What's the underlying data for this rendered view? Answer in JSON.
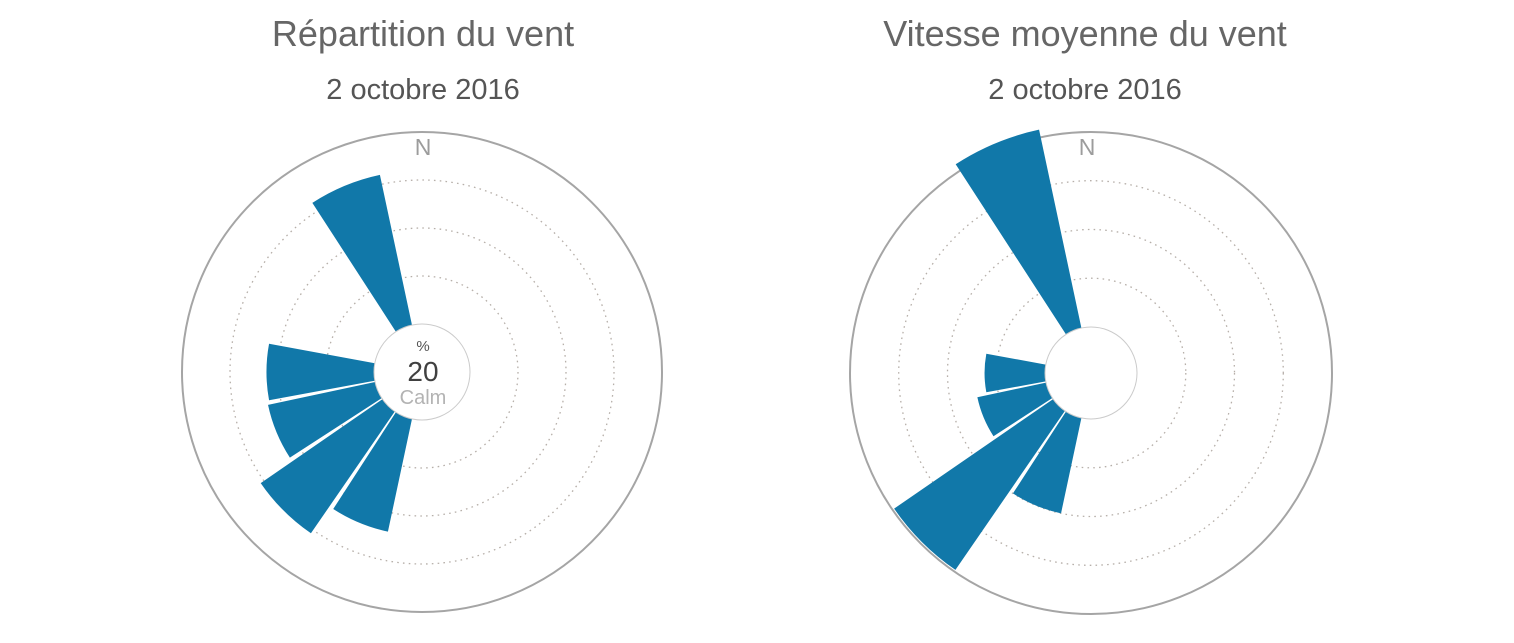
{
  "colors": {
    "petal": "#1178A9",
    "outer_circle": "#a5a5a5",
    "grid_dotted": "#b6afa9",
    "hole_border": "#cbcbcb",
    "title": "#666666",
    "subtitle": "#555555",
    "north_label": "#9c9c9c"
  },
  "chart_data": [
    {
      "type": "wind_rose",
      "title": "Répartition du vent",
      "subtitle": "2 octobre 2016",
      "north_label": "N",
      "center_label": {
        "unit": "%",
        "value": "20",
        "label": "Calm"
      },
      "axis": {
        "ring_fractions": [
          0.25,
          0.5,
          0.75
        ],
        "outer_fraction": 1,
        "tick_labels_visible": false,
        "grid_style": "dotted"
      },
      "sector_width_deg": 22.5,
      "sector_pad_deg": 0.8,
      "legend_position": "none",
      "petals": [
        {
          "direction": "NNW",
          "angle_deg": 337.5,
          "value_fraction": 0.8
        },
        {
          "direction": "W",
          "angle_deg": 270.0,
          "value_fraction": 0.56
        },
        {
          "direction": "WSW",
          "angle_deg": 247.5,
          "value_fraction": 0.57
        },
        {
          "direction": "SW",
          "angle_deg": 225.0,
          "value_fraction": 0.77
        },
        {
          "direction": "SSW",
          "angle_deg": 202.5,
          "value_fraction": 0.6
        }
      ]
    },
    {
      "type": "wind_rose",
      "title": "Vitesse moyenne du vent",
      "subtitle": "2 octobre 2016",
      "north_label": "N",
      "axis": {
        "ring_fractions": [
          0.25,
          0.5,
          0.75
        ],
        "outer_fraction": 1,
        "tick_labels_visible": false,
        "grid_style": "dotted"
      },
      "sector_width_deg": 22.5,
      "sector_pad_deg": 0.8,
      "legend_position": "none",
      "petals": [
        {
          "direction": "NNW",
          "angle_deg": 337.5,
          "value_fraction": 1.04
        },
        {
          "direction": "W",
          "angle_deg": 270.0,
          "value_fraction": 0.31
        },
        {
          "direction": "WSW",
          "angle_deg": 247.5,
          "value_fraction": 0.36
        },
        {
          "direction": "SW",
          "angle_deg": 225.0,
          "value_fraction": 0.99
        },
        {
          "direction": "SSW",
          "angle_deg": 202.5,
          "value_fraction": 0.5
        }
      ]
    }
  ]
}
